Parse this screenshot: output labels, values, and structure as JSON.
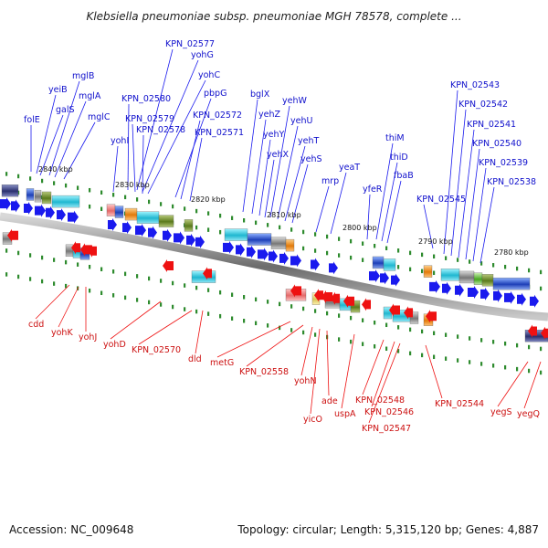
{
  "title": "Klebsiella pneumoniae subsp. pneumoniae MGH 78578, complete ...",
  "footer": {
    "accession": "Accession: NC_009648",
    "summary": "Topology: circular; Length: 5,315,120 bp; Genes: 4,887"
  },
  "colors": {
    "forward": "#1a1aee",
    "reverse": "#ee1111",
    "backbone": "#8a8a8a",
    "tick": "#2e8b2e"
  },
  "scale_labels": [
    "2840 kbp",
    "2830 kbp",
    "2820 kbp",
    "2810 kbp",
    "2800 kbp",
    "2790 kbp",
    "2780 kbp"
  ],
  "genes_top": [
    "folE",
    "yeiB",
    "galS",
    "mglB",
    "mglA",
    "mglC",
    "KPN_02577",
    "yohG",
    "yohC",
    "KPN_02580",
    "KPN_02579",
    "yohI",
    "KPN_02578",
    "pbpG",
    "KPN_02572",
    "KPN_02571",
    "bglX",
    "yehZ",
    "yehY",
    "yehW",
    "yehU",
    "yehX",
    "yehT",
    "yehS",
    "mrp",
    "yeaT",
    "yfeR",
    "thiM",
    "thiD",
    "fbaB",
    "KPN_02545",
    "KPN_02543",
    "KPN_02542",
    "KPN_02541",
    "KPN_02540",
    "KPN_02539",
    "KPN_02538"
  ],
  "genes_bottom": [
    "cdd",
    "yohK",
    "yohJ",
    "yohD",
    "KPN_02570",
    "dld",
    "metG",
    "KPN_02558",
    "yohN",
    "yicO",
    "ade",
    "uspA",
    "KPN_02548",
    "KPN_02546",
    "KPN_02547",
    "KPN_02544",
    "yegS",
    "yegQ"
  ]
}
